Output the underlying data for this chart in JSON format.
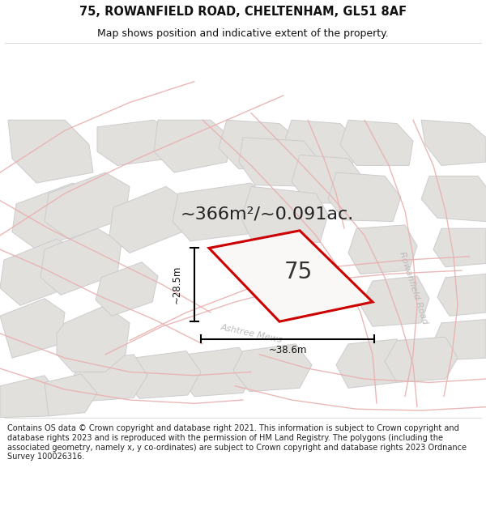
{
  "title": "75, ROWANFIELD ROAD, CHELTENHAM, GL51 8AF",
  "subtitle": "Map shows position and indicative extent of the property.",
  "area_text": "~366m²/~0.091ac.",
  "property_number": "75",
  "dim_width": "~38.6m",
  "dim_height": "~28.5m",
  "street_label1": "Ashtree Mews",
  "street_label2": "Rowanfield Road",
  "footer_text": "Contains OS data © Crown copyright and database right 2021. This information is subject to Crown copyright and database rights 2023 and is reproduced with the permission of HM Land Registry. The polygons (including the associated geometry, namely x, y co-ordinates) are subject to Crown copyright and database rights 2023 Ordnance Survey 100026316.",
  "map_bg_color": "#f9f8f6",
  "property_fill": "#f9f8f6",
  "property_edge_color": "#cc0000",
  "road_fill_color": "#f9f8f6",
  "road_line_color": "#e8b0b0",
  "building_fill": "#e2e0dd",
  "building_edge": "#cccccc",
  "footer_bg": "#ffffff",
  "title_color": "#111111",
  "fig_width": 6.0,
  "fig_height": 6.25,
  "title_fontsize": 10.5,
  "subtitle_fontsize": 9.0,
  "area_fontsize": 16,
  "number_fontsize": 20,
  "footer_fontsize": 7.0
}
